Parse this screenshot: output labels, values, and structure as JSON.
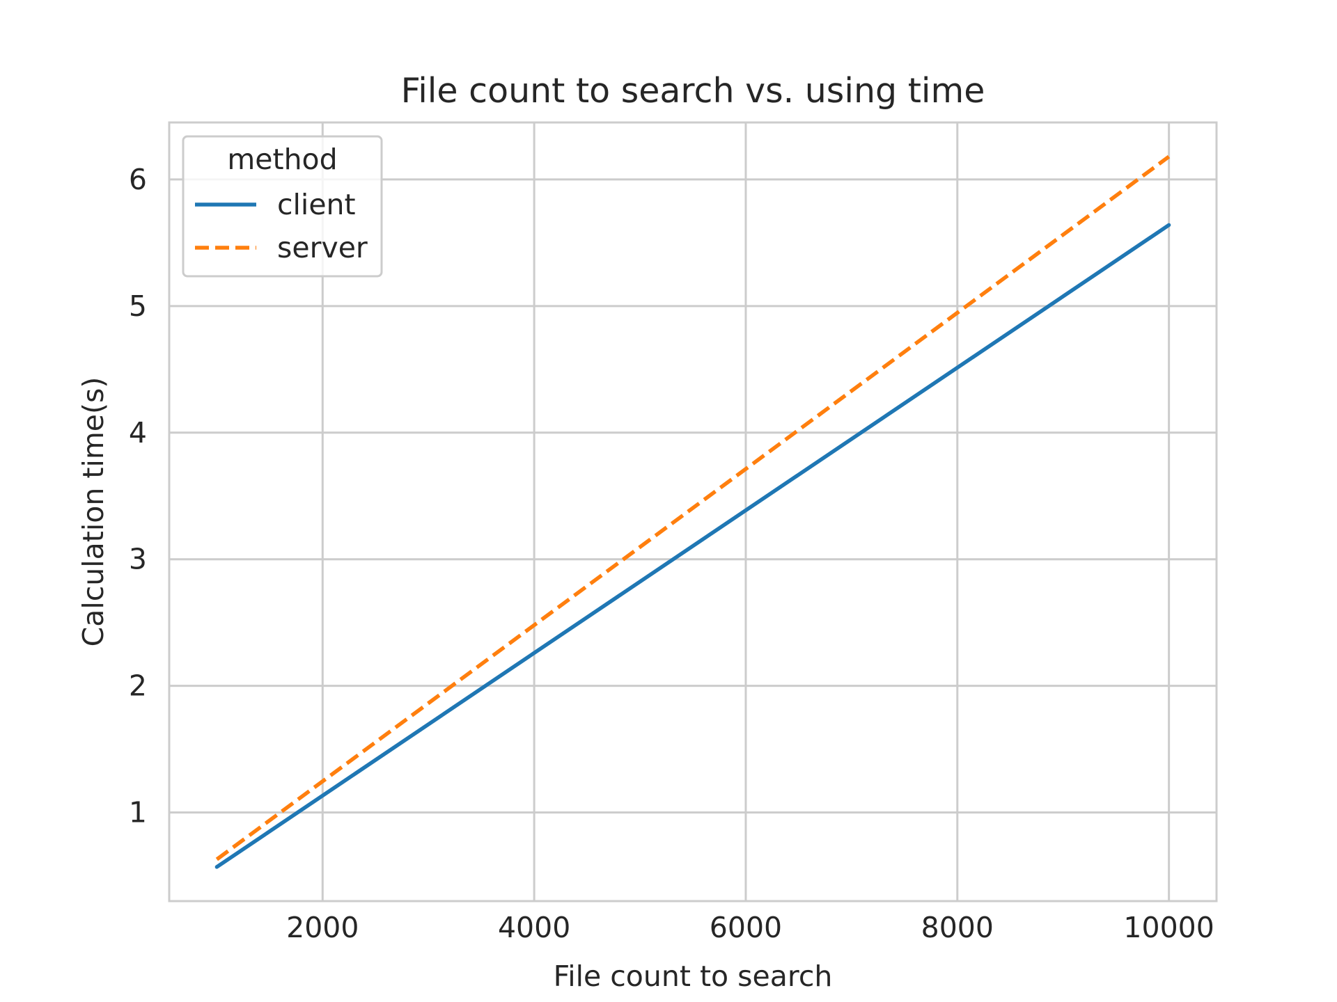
{
  "chart_data": {
    "type": "line",
    "title": "File count to search vs. using time",
    "xlabel": "File count to search",
    "ylabel": "Calculation time(s)",
    "xlim": [
      550,
      10450
    ],
    "ylim": [
      0.3,
      6.45
    ],
    "xticks": [
      2000,
      4000,
      6000,
      8000,
      10000
    ],
    "yticks": [
      1,
      2,
      3,
      4,
      5,
      6
    ],
    "grid": true,
    "legend": {
      "title": "method",
      "placement": "top-left"
    },
    "series": [
      {
        "name": "client",
        "color": "#1f77b4",
        "style": "solid",
        "x": [
          1000,
          10000
        ],
        "y": [
          0.57,
          5.64
        ]
      },
      {
        "name": "server",
        "color": "#ff7f0e",
        "style": "dashed",
        "x": [
          1000,
          10000
        ],
        "y": [
          0.63,
          6.18
        ]
      }
    ]
  }
}
